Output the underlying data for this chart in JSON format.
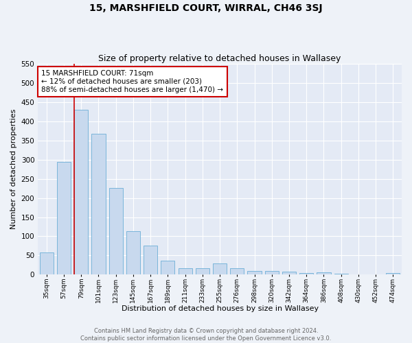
{
  "title": "15, MARSHFIELD COURT, WIRRAL, CH46 3SJ",
  "subtitle": "Size of property relative to detached houses in Wallasey",
  "xlabel": "Distribution of detached houses by size in Wallasey",
  "ylabel": "Number of detached properties",
  "categories": [
    "35sqm",
    "57sqm",
    "79sqm",
    "101sqm",
    "123sqm",
    "145sqm",
    "167sqm",
    "189sqm",
    "211sqm",
    "233sqm",
    "255sqm",
    "276sqm",
    "298sqm",
    "320sqm",
    "342sqm",
    "364sqm",
    "386sqm",
    "408sqm",
    "430sqm",
    "452sqm",
    "474sqm"
  ],
  "values": [
    57,
    295,
    430,
    368,
    226,
    113,
    76,
    37,
    16,
    17,
    29,
    17,
    10,
    10,
    8,
    4,
    5,
    3,
    0,
    0,
    4
  ],
  "bar_color": "#c8d9ee",
  "bar_edge_color": "#6baed6",
  "marker_line_color": "#cc0000",
  "annotation_text": "15 MARSHFIELD COURT: 71sqm\n← 12% of detached houses are smaller (203)\n88% of semi-detached houses are larger (1,470) →",
  "annotation_box_color": "#ffffff",
  "annotation_box_edge": "#cc0000",
  "footer_text": "Contains HM Land Registry data © Crown copyright and database right 2024.\nContains public sector information licensed under the Open Government Licence v3.0.",
  "ylim": [
    0,
    550
  ],
  "yticks": [
    0,
    50,
    100,
    150,
    200,
    250,
    300,
    350,
    400,
    450,
    500,
    550
  ],
  "bg_color": "#eef2f8",
  "plot_bg_color": "#e4eaf5",
  "grid_color": "#ffffff",
  "title_fontsize": 10,
  "subtitle_fontsize": 9,
  "footer_color": "#666666"
}
